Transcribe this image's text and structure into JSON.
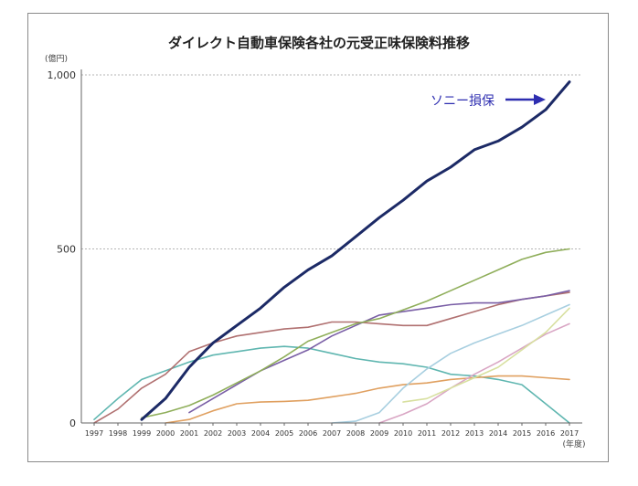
{
  "chart_data": {
    "type": "line",
    "title": "ダイレクト自動車保険各社の元受正味保険料推移",
    "y_unit": "(億円)",
    "x_unit": "(年度)",
    "xlabel": "",
    "ylabel": "",
    "ylim": [
      0,
      1000
    ],
    "y_ticks": [
      {
        "value": 0,
        "label": "0"
      },
      {
        "value": 500,
        "label": "500"
      },
      {
        "value": 1000,
        "label": "1,000"
      }
    ],
    "x": [
      "1997",
      "1998",
      "1999",
      "2000",
      "2001",
      "2002",
      "2003",
      "2004",
      "2005",
      "2006",
      "2007",
      "2008",
      "2009",
      "2010",
      "2011",
      "2012",
      "2013",
      "2014",
      "2015",
      "2016",
      "2017"
    ],
    "grid": true,
    "annotation": "ソニー損保",
    "series": [
      {
        "name": "ソニー損保",
        "color": "#1c2a66",
        "width": 3,
        "values": [
          null,
          null,
          10,
          70,
          160,
          230,
          280,
          330,
          390,
          440,
          480,
          535,
          590,
          640,
          695,
          735,
          785,
          810,
          850,
          900,
          980
        ]
      },
      {
        "color": "#5fb6b0",
        "width": 1.6,
        "values": [
          10,
          70,
          125,
          150,
          175,
          195,
          205,
          215,
          220,
          215,
          200,
          185,
          175,
          170,
          160,
          140,
          135,
          125,
          110,
          55,
          0
        ]
      },
      {
        "color": "#b07070",
        "width": 1.6,
        "values": [
          0,
          40,
          100,
          140,
          205,
          230,
          250,
          260,
          270,
          275,
          290,
          290,
          285,
          280,
          280,
          300,
          320,
          340,
          355,
          365,
          375
        ]
      },
      {
        "color": "#7a5fa6",
        "width": 1.6,
        "values": [
          null,
          null,
          null,
          null,
          30,
          70,
          110,
          150,
          180,
          210,
          250,
          280,
          310,
          320,
          330,
          340,
          345,
          345,
          355,
          365,
          380
        ]
      },
      {
        "color": "#8fae5a",
        "width": 1.6,
        "values": [
          null,
          null,
          15,
          30,
          50,
          80,
          115,
          150,
          190,
          235,
          260,
          285,
          300,
          325,
          350,
          380,
          410,
          440,
          470,
          490,
          500
        ]
      },
      {
        "color": "#e0a060",
        "width": 1.6,
        "values": [
          null,
          null,
          null,
          0,
          10,
          35,
          55,
          60,
          62,
          65,
          75,
          85,
          100,
          110,
          115,
          125,
          130,
          135,
          135,
          130,
          125
        ]
      },
      {
        "color": "#a8cfe0",
        "width": 1.6,
        "values": [
          null,
          null,
          null,
          null,
          null,
          null,
          null,
          null,
          null,
          null,
          0,
          5,
          30,
          100,
          155,
          200,
          230,
          255,
          280,
          310,
          340
        ]
      },
      {
        "color": "#d9a6c4",
        "width": 1.6,
        "values": [
          null,
          null,
          null,
          null,
          null,
          null,
          null,
          null,
          null,
          null,
          null,
          null,
          0,
          25,
          55,
          100,
          140,
          175,
          215,
          255,
          285
        ]
      },
      {
        "color": "#d8e0a0",
        "width": 1.6,
        "values": [
          null,
          null,
          null,
          null,
          null,
          null,
          null,
          null,
          null,
          null,
          null,
          null,
          null,
          60,
          70,
          100,
          130,
          160,
          210,
          260,
          330
        ]
      }
    ]
  }
}
